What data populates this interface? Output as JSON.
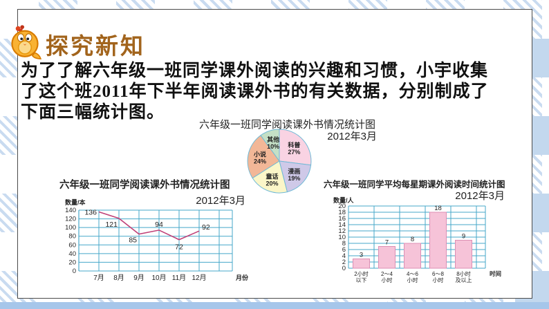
{
  "palette": {
    "stripe": "#c9dbf0",
    "solid_tile": "#c3d8ee",
    "bottom_strip": "#a6c6ea",
    "panel_border": "#4a4a4a"
  },
  "page": {
    "header": {
      "title": "探究新知",
      "title_color": "#a2641c",
      "icon": "chick-mascot-icon"
    },
    "paragraph": {
      "lines": [
        "为了了解六年级一班同学课外阅读的兴趣和习惯，小宇收集",
        "了这个班2011年下半年阅读课外书的有关数据，分别制成了",
        "下面三幅统计图。"
      ]
    }
  },
  "chart_data": [
    {
      "id": "pie-chart",
      "type": "pie",
      "title": "六年级一班同学阅读课外书情况统计图",
      "subtitle": "2012年3月",
      "start_angle_deg": 0,
      "direction": "clockwise",
      "outline_color": "#6fb9d6",
      "slices": [
        {
          "label": "科普",
          "value": 27,
          "color": "#f9d3e3"
        },
        {
          "label": "漫画",
          "value": 19,
          "color": "#cfc9e8"
        },
        {
          "label": "童话",
          "value": 20,
          "color": "#fbf6c8"
        },
        {
          "label": "小说",
          "value": 24,
          "color": "#f2b797"
        },
        {
          "label": "其他",
          "value": 10,
          "color": "#c4e0c6"
        }
      ]
    },
    {
      "id": "line-chart",
      "type": "line",
      "title": "六年级一班同学阅读课外书情况统计图",
      "subtitle": "2012年3月",
      "ylabel": "数量/本",
      "xlabel": "月份",
      "categories": [
        "7月",
        "8月",
        "9月",
        "10月",
        "11月",
        "12月"
      ],
      "values": [
        136,
        121,
        85,
        94,
        72,
        92
      ],
      "ylim": [
        0,
        140
      ],
      "ytick_step": 20,
      "grid": true,
      "grid_color": "#45a7c9",
      "line_color": "#c04077"
    },
    {
      "id": "bar-chart",
      "type": "bar",
      "title": "六年级一班同学平均每星期课外阅读时间统计图",
      "subtitle": "2012年3月",
      "ylabel": "数量/人",
      "xlabel": "时间",
      "categories": [
        [
          "2小时",
          "以下"
        ],
        [
          "2～4",
          "小时"
        ],
        [
          "4～6",
          "小时"
        ],
        [
          "6～8",
          "小时"
        ],
        [
          "8小时",
          "及以上"
        ]
      ],
      "values": [
        3,
        7,
        8,
        18,
        9
      ],
      "ylim": [
        0,
        20
      ],
      "ytick_step": 2,
      "grid": true,
      "grid_color": "#45a7c9",
      "bar_fill": "#f6c3d8",
      "bar_stroke": "#dd8fb4"
    }
  ]
}
